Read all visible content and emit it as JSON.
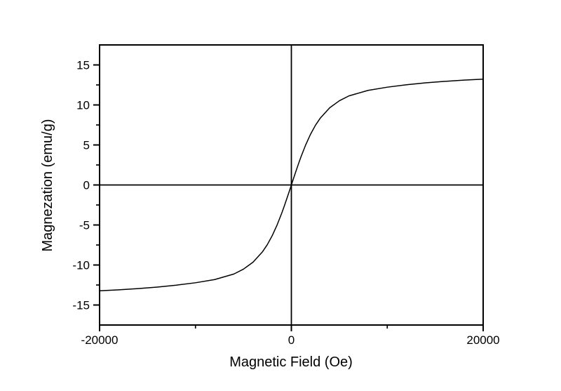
{
  "page": {
    "background_color": "#ffffff",
    "foreground_color": "#000000"
  },
  "chart_data": {
    "type": "line",
    "title": "",
    "grid": false,
    "legend": false,
    "zero_reference_lines": true,
    "x_axis": {
      "label": "Magnetic Field (Oe)",
      "range": [
        -20000,
        20000
      ],
      "major_ticks": [
        -20000,
        0,
        20000
      ],
      "major_tick_labels": [
        "-20000",
        "0",
        "20000"
      ],
      "minor_ticks": [
        -10000,
        10000
      ]
    },
    "y_axis": {
      "label": "Magnezation (emu/g)",
      "range": [
        -17.5,
        17.5
      ],
      "major_ticks": [
        -15,
        -10,
        -5,
        0,
        5,
        10,
        15
      ],
      "major_tick_labels": [
        "-15",
        "-10",
        "-5",
        "0",
        "5",
        "10",
        "15"
      ],
      "minor_ticks": [
        -12.5,
        -7.5,
        -2.5,
        2.5,
        7.5,
        12.5
      ]
    },
    "series": [
      {
        "name": "magnetization-vs-field",
        "color": "#000000",
        "points": [
          [
            -20000,
            -13.22
          ],
          [
            -18000,
            -13.1
          ],
          [
            -16000,
            -12.95
          ],
          [
            -14000,
            -12.76
          ],
          [
            -12000,
            -12.52
          ],
          [
            -10000,
            -12.22
          ],
          [
            -8000,
            -11.82
          ],
          [
            -6000,
            -11.13
          ],
          [
            -5000,
            -10.52
          ],
          [
            -4000,
            -9.65
          ],
          [
            -3000,
            -8.33
          ],
          [
            -2500,
            -7.44
          ],
          [
            -2000,
            -6.34
          ],
          [
            -1500,
            -5.03
          ],
          [
            -1000,
            -3.51
          ],
          [
            -750,
            -2.67
          ],
          [
            -500,
            -1.8
          ],
          [
            -250,
            -0.91
          ],
          [
            0,
            0.0
          ],
          [
            250,
            0.91
          ],
          [
            500,
            1.8
          ],
          [
            750,
            2.67
          ],
          [
            1000,
            3.51
          ],
          [
            1500,
            5.03
          ],
          [
            2000,
            6.34
          ],
          [
            2500,
            7.44
          ],
          [
            3000,
            8.33
          ],
          [
            4000,
            9.65
          ],
          [
            5000,
            10.52
          ],
          [
            6000,
            11.13
          ],
          [
            8000,
            11.82
          ],
          [
            10000,
            12.22
          ],
          [
            12000,
            12.52
          ],
          [
            14000,
            12.76
          ],
          [
            16000,
            12.95
          ],
          [
            18000,
            13.1
          ],
          [
            20000,
            13.22
          ]
        ]
      }
    ]
  }
}
